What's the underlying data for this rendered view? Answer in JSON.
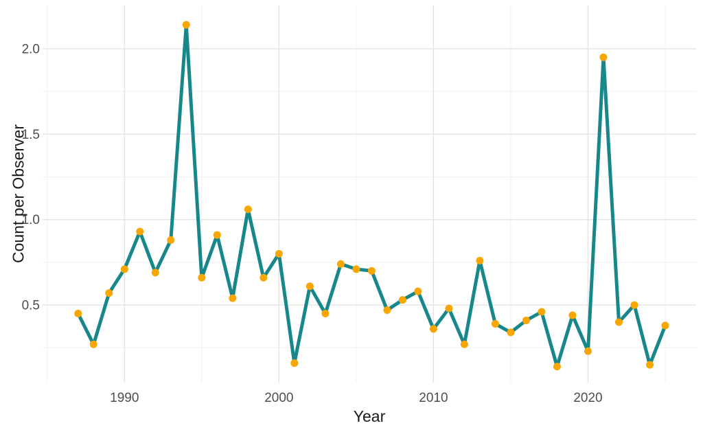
{
  "chart_data": {
    "type": "line",
    "title": "",
    "xlabel": "Year",
    "ylabel": "Count per Observer",
    "series": [
      {
        "name": "Count per Observer",
        "x": [
          1987,
          1988,
          1989,
          1990,
          1991,
          1992,
          1993,
          1994,
          1995,
          1996,
          1997,
          1998,
          1999,
          2000,
          2001,
          2002,
          2003,
          2004,
          2005,
          2006,
          2007,
          2008,
          2009,
          2010,
          2011,
          2012,
          2013,
          2014,
          2015,
          2016,
          2017,
          2018,
          2019,
          2020,
          2021,
          2022,
          2023,
          2024,
          2025
        ],
        "values": [
          0.45,
          0.27,
          0.57,
          0.71,
          0.93,
          0.69,
          0.88,
          2.14,
          0.66,
          0.91,
          0.54,
          1.06,
          0.66,
          0.8,
          0.16,
          0.61,
          0.45,
          0.74,
          0.71,
          0.7,
          0.47,
          0.53,
          0.58,
          0.36,
          0.48,
          0.27,
          0.76,
          0.39,
          0.34,
          0.41,
          0.46,
          0.14,
          0.44,
          0.23,
          1.95,
          0.4,
          0.5,
          0.15,
          0.38
        ]
      }
    ],
    "xlim": [
      1984.7,
      2027.0
    ],
    "ylim": [
      0.046,
      2.253
    ],
    "x_ticks": {
      "major": [
        1990,
        2000,
        2010,
        2020
      ],
      "major_labels": [
        "1990",
        "2000",
        "2010",
        "2020"
      ],
      "minor": [
        1985,
        1995,
        2005,
        2015,
        2025
      ]
    },
    "y_ticks": {
      "major": [
        0.5,
        1.0,
        1.5,
        2.0
      ],
      "major_labels": [
        "0.5",
        "1.0",
        "1.5",
        "2.0"
      ],
      "minor": [
        0.25,
        0.75,
        1.25,
        1.75
      ]
    },
    "grid": true,
    "legend": "none",
    "marker": "circle",
    "colors": {
      "line": "#18878C",
      "marker": "#F9A602",
      "grid_major": "#E3E3E3",
      "grid_minor": "#F0F0F0",
      "tick_label": "#4D4D4D",
      "axis_title": "#1A1A1A",
      "background": "#FFFFFF"
    }
  }
}
